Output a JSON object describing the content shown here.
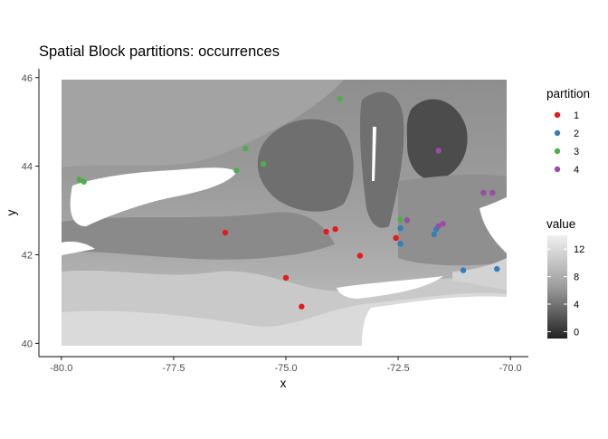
{
  "chart_data": {
    "type": "scatter",
    "title": "Spatial Block partitions: occurrences",
    "xlabel": "x",
    "ylabel": "y",
    "xlim": [
      -80.5,
      -69.6
    ],
    "ylim": [
      39.7,
      46.2
    ],
    "xticks": [
      -80.0,
      -77.5,
      -75.0,
      -72.5,
      -70.0
    ],
    "xtick_labels": [
      "-80.0",
      "-77.5",
      "-75.0",
      "-72.5",
      "-70.0"
    ],
    "yticks": [
      40,
      42,
      44,
      46
    ],
    "ytick_labels": [
      "40",
      "42",
      "44",
      "46"
    ],
    "grid": false,
    "background_raster": {
      "extent_x": [
        -80.0,
        -69.95
      ],
      "extent_y": [
        40.0,
        46.0
      ],
      "color_low": "#222222",
      "color_high": "#f0f0f0",
      "value_range": [
        -1,
        14
      ]
    },
    "legend_partition": {
      "title": "partition",
      "placement": "right",
      "entries": [
        {
          "label": "1",
          "color": "#e41a1c"
        },
        {
          "label": "2",
          "color": "#377eb8"
        },
        {
          "label": "3",
          "color": "#4daf4a"
        },
        {
          "label": "4",
          "color": "#984ea3"
        }
      ]
    },
    "legend_value": {
      "title": "value",
      "placement": "right",
      "ticks": [
        12,
        8,
        4,
        0
      ],
      "tick_labels": [
        "12",
        "8",
        "4",
        "0"
      ],
      "range": [
        -1,
        14
      ]
    },
    "series": [
      {
        "name": "1",
        "color": "#e41a1c",
        "points": [
          {
            "x": -76.35,
            "y": 42.5
          },
          {
            "x": -74.1,
            "y": 42.52
          },
          {
            "x": -73.9,
            "y": 42.58
          },
          {
            "x": -73.35,
            "y": 41.98
          },
          {
            "x": -72.55,
            "y": 42.38
          },
          {
            "x": -75.0,
            "y": 41.48
          },
          {
            "x": -74.65,
            "y": 40.83
          }
        ]
      },
      {
        "name": "2",
        "color": "#377eb8",
        "points": [
          {
            "x": -72.45,
            "y": 42.6
          },
          {
            "x": -72.45,
            "y": 42.25
          },
          {
            "x": -71.7,
            "y": 42.46
          },
          {
            "x": -71.65,
            "y": 42.58
          },
          {
            "x": -71.05,
            "y": 41.65
          },
          {
            "x": -70.3,
            "y": 41.68
          }
        ]
      },
      {
        "name": "3",
        "color": "#4daf4a",
        "points": [
          {
            "x": -79.6,
            "y": 43.7
          },
          {
            "x": -79.5,
            "y": 43.65
          },
          {
            "x": -76.1,
            "y": 43.9
          },
          {
            "x": -75.9,
            "y": 44.4
          },
          {
            "x": -75.5,
            "y": 44.05
          },
          {
            "x": -73.8,
            "y": 45.52
          },
          {
            "x": -72.45,
            "y": 42.8
          }
        ]
      },
      {
        "name": "4",
        "color": "#984ea3",
        "points": [
          {
            "x": -71.6,
            "y": 44.35
          },
          {
            "x": -72.3,
            "y": 42.78
          },
          {
            "x": -71.6,
            "y": 42.65
          },
          {
            "x": -71.5,
            "y": 42.7
          },
          {
            "x": -70.6,
            "y": 43.4
          },
          {
            "x": -70.4,
            "y": 43.4
          }
        ]
      }
    ]
  }
}
